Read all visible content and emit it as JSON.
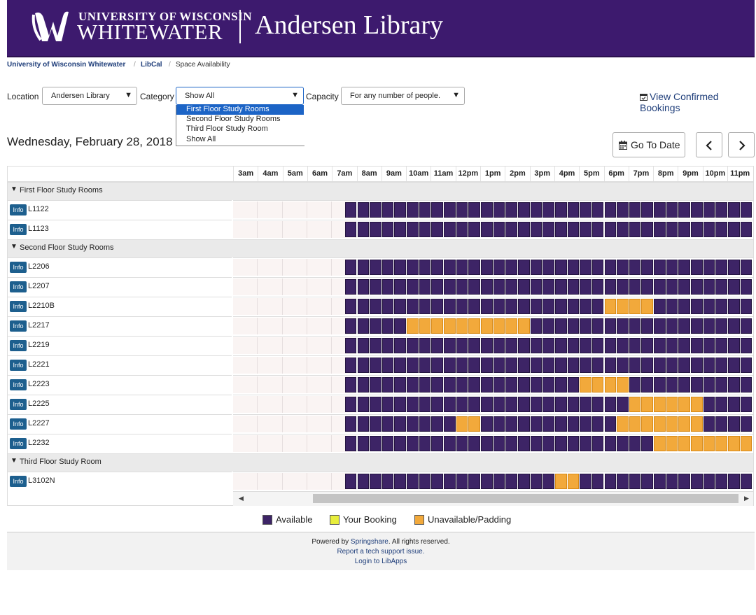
{
  "header": {
    "university_line1": "UNIVERSITY OF WISCONSIN",
    "university_line2": "WHITEWATER",
    "library_name": "Andersen Library"
  },
  "breadcrumb": {
    "items": [
      "University of Wisconsin Whitewater",
      "LibCal",
      "Space Availability"
    ],
    "separator": "/"
  },
  "filters": {
    "location_label": "Location",
    "location_value": "Andersen Library",
    "category_label": "Category",
    "category_value": "Show All",
    "category_options": [
      "First Floor Study Rooms",
      "Second Floor Study Rooms",
      "Third Floor Study Room",
      "Show All"
    ],
    "category_highlighted": "First Floor Study Rooms",
    "capacity_label": "Capacity",
    "capacity_value": "For any number of people."
  },
  "view_bookings_label": "View Confirmed Bookings",
  "date_heading": "Wednesday, February 28, 2018",
  "go_to_date_label": "Go To Date",
  "prev_icon": "chevron-left-icon",
  "next_icon": "chevron-right-icon",
  "grid": {
    "hours": [
      "3am",
      "4am",
      "5am",
      "6am",
      "7am",
      "8am",
      "9am",
      "10am",
      "11am",
      "12pm",
      "1pm",
      "2pm",
      "3pm",
      "4pm",
      "5pm",
      "6pm",
      "7pm",
      "8pm",
      "9pm",
      "10pm",
      "11pm"
    ],
    "info_label": "Info",
    "groups": [
      {
        "name": "First Floor Study Rooms",
        "rooms": [
          {
            "name": "L1122",
            "unavailable": []
          },
          {
            "name": "L1123",
            "unavailable": []
          }
        ]
      },
      {
        "name": "Second Floor Study Rooms",
        "rooms": [
          {
            "name": "L2206",
            "unavailable": []
          },
          {
            "name": "L2207",
            "unavailable": []
          },
          {
            "name": "L2210B",
            "unavailable": [
              [
                18.0,
                20.0
              ]
            ]
          },
          {
            "name": "L2217",
            "unavailable": [
              [
                10.0,
                15.0
              ]
            ]
          },
          {
            "name": "L2219",
            "unavailable": []
          },
          {
            "name": "L2221",
            "unavailable": []
          },
          {
            "name": "L2223",
            "unavailable": [
              [
                17.0,
                19.0
              ]
            ]
          },
          {
            "name": "L2225",
            "unavailable": [
              [
                19.0,
                22.0
              ]
            ]
          },
          {
            "name": "L2227",
            "unavailable": [
              [
                12.0,
                13.0
              ],
              [
                18.5,
                22.0
              ]
            ]
          },
          {
            "name": "L2232",
            "unavailable": [
              [
                20.0,
                24.0
              ]
            ]
          }
        ]
      },
      {
        "name": "Third Floor Study Room",
        "rooms": [
          {
            "name": "L3102N",
            "unavailable": [
              [
                16.0,
                17.0
              ]
            ]
          }
        ]
      }
    ],
    "availability_start_hour": 7.5,
    "slot_minutes": 30
  },
  "legend": [
    {
      "label": "Available",
      "color": "#3d2466"
    },
    {
      "label": "Your Booking",
      "color": "#e8ee3c"
    },
    {
      "label": "Unavailable/Padding",
      "color": "#f2a93b"
    }
  ],
  "footer": {
    "powered_prefix": "Powered by ",
    "powered_link": "Springshare",
    "powered_suffix": ". All rights reserved.",
    "report_link": "Report a tech support issue.",
    "login_link": "Login to LibApps"
  }
}
